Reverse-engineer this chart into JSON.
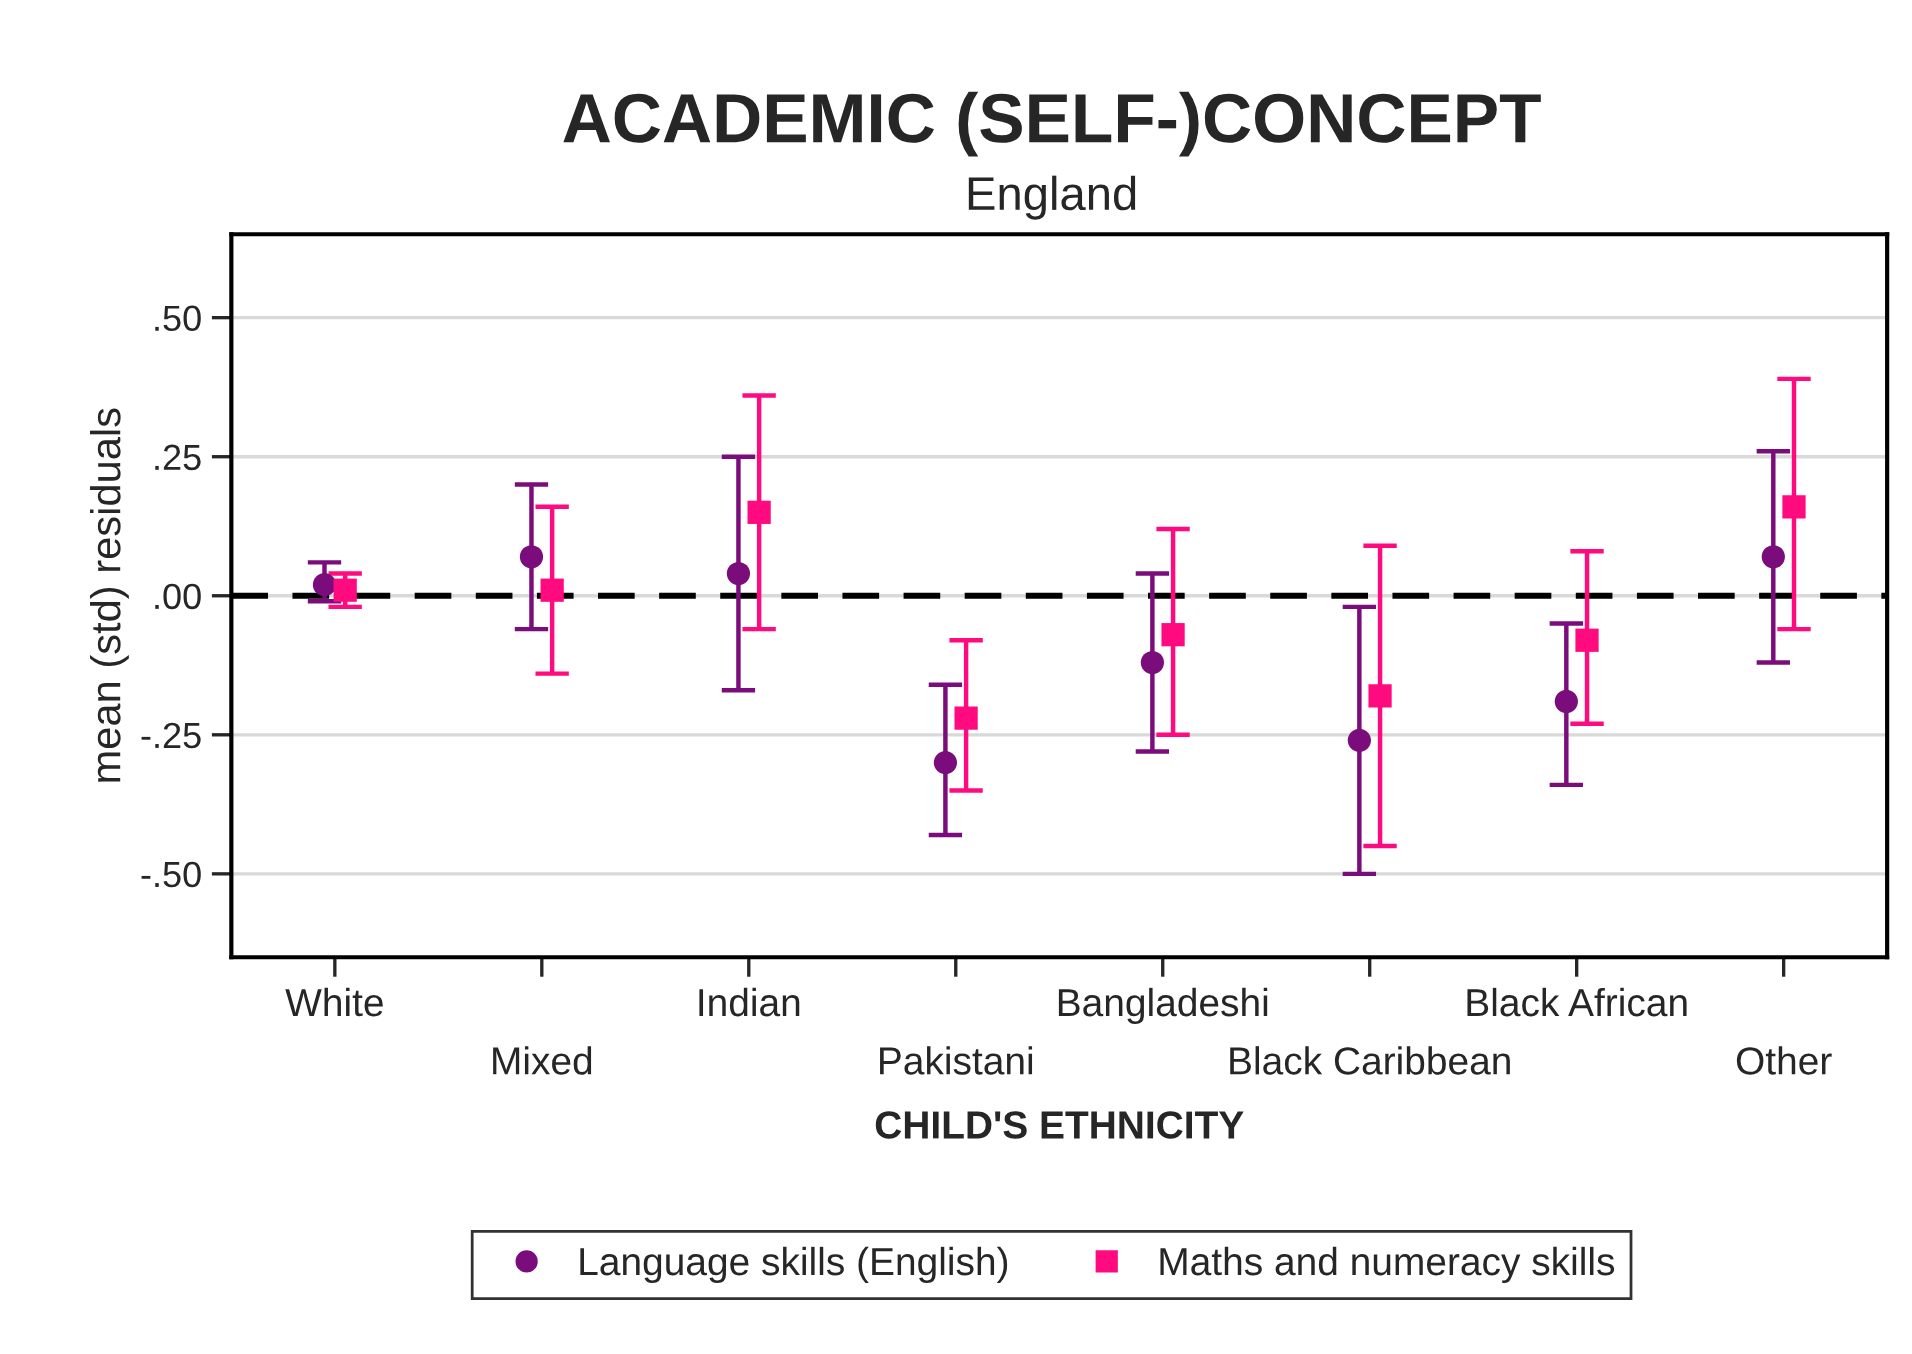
{
  "chart_data": {
    "type": "scatter",
    "title": "ACADEMIC (SELF-)CONCEPT",
    "subtitle": "England",
    "xlabel": "CHILD'S ETHNICITY",
    "ylabel": "mean (std) residuals",
    "categories": [
      "White",
      "Mixed",
      "Indian",
      "Pakistani",
      "Bangladeshi",
      "Black Caribbean",
      "Black African",
      "Other"
    ],
    "series": [
      {
        "name": "Language skills (English)",
        "color": "#7b0c7b",
        "marker": "circle",
        "values": [
          0.02,
          0.07,
          0.04,
          -0.3,
          -0.12,
          -0.26,
          -0.19,
          0.07
        ],
        "errors": [
          [
            -0.01,
            0.06
          ],
          [
            -0.06,
            0.2
          ],
          [
            -0.17,
            0.25
          ],
          [
            -0.43,
            -0.16
          ],
          [
            -0.28,
            0.04
          ],
          [
            -0.5,
            -0.02
          ],
          [
            -0.34,
            -0.05
          ],
          [
            -0.12,
            0.26
          ]
        ]
      },
      {
        "name": "Maths and numeracy skills",
        "color": "#ff0a7f",
        "marker": "square",
        "values": [
          0.01,
          0.01,
          0.15,
          -0.22,
          -0.07,
          -0.18,
          -0.08,
          0.16
        ],
        "errors": [
          [
            -0.02,
            0.04
          ],
          [
            -0.14,
            0.16
          ],
          [
            -0.06,
            0.36
          ],
          [
            -0.35,
            -0.08
          ],
          [
            -0.25,
            0.12
          ],
          [
            -0.45,
            0.09
          ],
          [
            -0.23,
            0.08
          ],
          [
            -0.06,
            0.39
          ]
        ]
      }
    ],
    "ylim": [
      -0.65,
      0.65
    ],
    "yticks": [
      {
        "value": 0.5,
        "label": ".50"
      },
      {
        "value": 0.25,
        "label": ".25"
      },
      {
        "value": 0,
        "label": ".00"
      },
      {
        "value": -0.25,
        "label": "-.25"
      },
      {
        "value": -0.5,
        "label": "-.50"
      }
    ],
    "grid": "y",
    "legend": "bottom",
    "ref_lines": [
      {
        "axis": "y",
        "value": 0,
        "color": "#000000",
        "line_style": "dashed"
      }
    ]
  }
}
